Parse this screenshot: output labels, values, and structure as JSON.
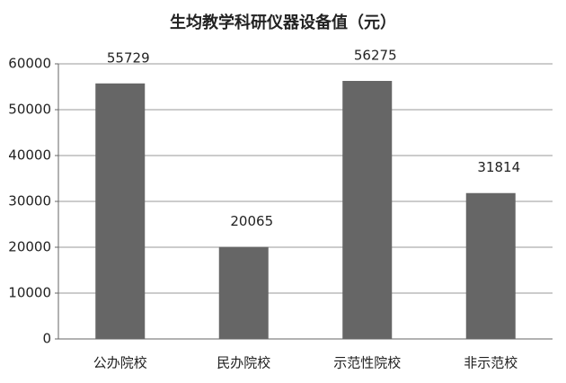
{
  "chart_data": {
    "type": "bar",
    "title": "生均教学科研仪器设备值（元）",
    "categories": [
      "公办院校",
      "民办院校",
      "示范性院校",
      "非示范校"
    ],
    "values": [
      55729,
      20065,
      56275,
      31814
    ],
    "color": "#666666",
    "ylim": [
      0,
      60000
    ],
    "yticks": [
      0,
      10000,
      20000,
      30000,
      40000,
      50000,
      60000
    ],
    "grid": true
  }
}
